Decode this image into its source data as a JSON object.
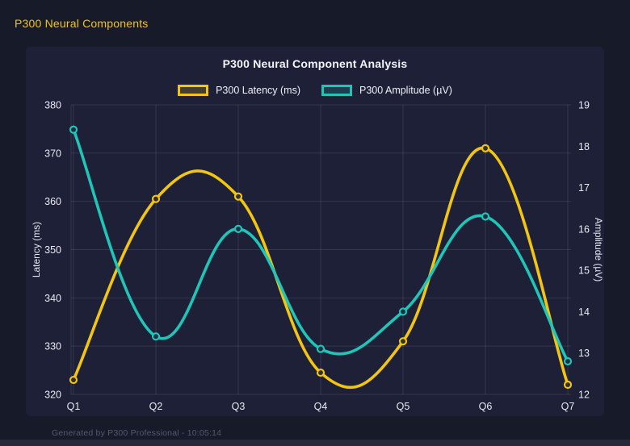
{
  "header": {
    "title": "P300 Neural Components"
  },
  "footer": {
    "text": "Generated by P300 Professional - 10:05:14"
  },
  "colors": {
    "background": "#171a28",
    "card": "#1d2037",
    "grid": "rgba(255,255,255,0.10)",
    "latency": "#f2c512",
    "amplitude": "#20c5b7",
    "text": "#f4f5f9"
  },
  "chart_data": {
    "type": "line",
    "title": "P300 Neural Component Analysis",
    "categories": [
      "Q1",
      "Q2",
      "Q3",
      "Q4",
      "Q5",
      "Q6",
      "Q7"
    ],
    "series": [
      {
        "name": "P300 Latency (ms)",
        "axis": "left",
        "color": "#f2c512",
        "values": [
          323,
          360.5,
          361,
          324.5,
          331,
          371,
          322
        ]
      },
      {
        "name": "P300 Amplitude (µV)",
        "axis": "right",
        "color": "#20c5b7",
        "values": [
          18.4,
          13.4,
          16.0,
          13.1,
          14.0,
          16.3,
          12.8
        ]
      }
    ],
    "left_axis": {
      "label": "Latency (ms)",
      "min": 320,
      "max": 380,
      "ticks": [
        320,
        330,
        340,
        350,
        360,
        370,
        380
      ]
    },
    "right_axis": {
      "label": "Amplitude (µV)",
      "min": 12,
      "max": 19,
      "ticks": [
        12,
        13,
        14,
        15,
        16,
        17,
        18,
        19
      ]
    },
    "grid": true,
    "legend_position": "top",
    "smooth": true
  }
}
